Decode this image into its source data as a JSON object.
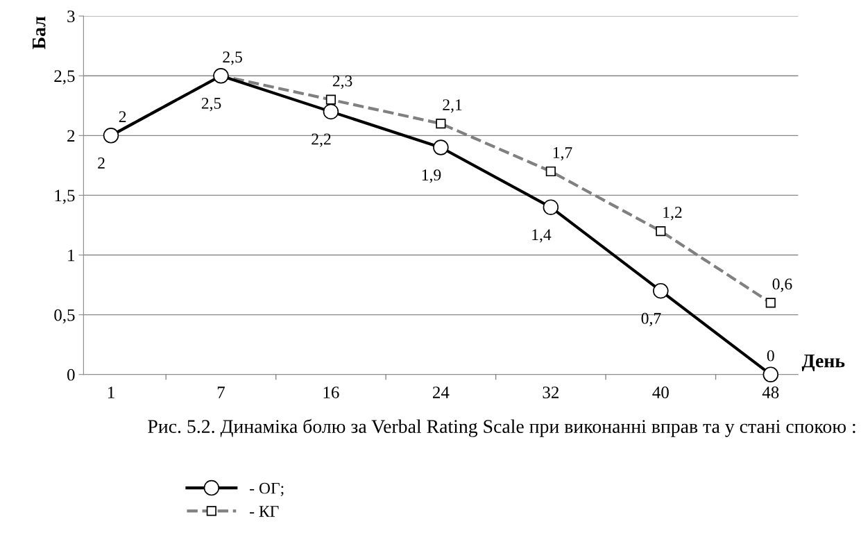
{
  "chart_data": {
    "type": "line",
    "xlabel": "День",
    "ylabel": "Бал",
    "categories": [
      "1",
      "7",
      "16",
      "24",
      "32",
      "40",
      "48"
    ],
    "series": [
      {
        "name": "- ОГ;",
        "color": "#000000",
        "marker": "circle",
        "line_style": "solid",
        "values": [
          2,
          2.5,
          2.2,
          1.9,
          1.4,
          0.7,
          0
        ],
        "value_labels": [
          "2",
          "2,5",
          "2,2",
          "1,9",
          "1,4",
          "0,7",
          "0"
        ]
      },
      {
        "name": "- КГ",
        "color": "#808080",
        "marker": "square",
        "line_style": "dashed",
        "values": [
          2,
          2.5,
          2.3,
          2.1,
          1.7,
          1.2,
          0.6
        ],
        "value_labels": [
          "2",
          "2,5",
          "2,3",
          "2,1",
          "1,7",
          "1,2",
          "0,6"
        ]
      }
    ],
    "ylim": [
      0,
      3
    ],
    "yticks": [
      0,
      {
        "value": 0.5,
        "label": "0,5"
      },
      1,
      {
        "value": 1.5,
        "label": "1,5"
      },
      2,
      {
        "value": 2.5,
        "label": "2,5"
      },
      3
    ],
    "grid": "y",
    "legend": "bottom",
    "annotations": [
      "Рис. 5.2. Динаміка болю за Verbal Rating Scale при виконанні вправ та у стані спокою :"
    ]
  }
}
